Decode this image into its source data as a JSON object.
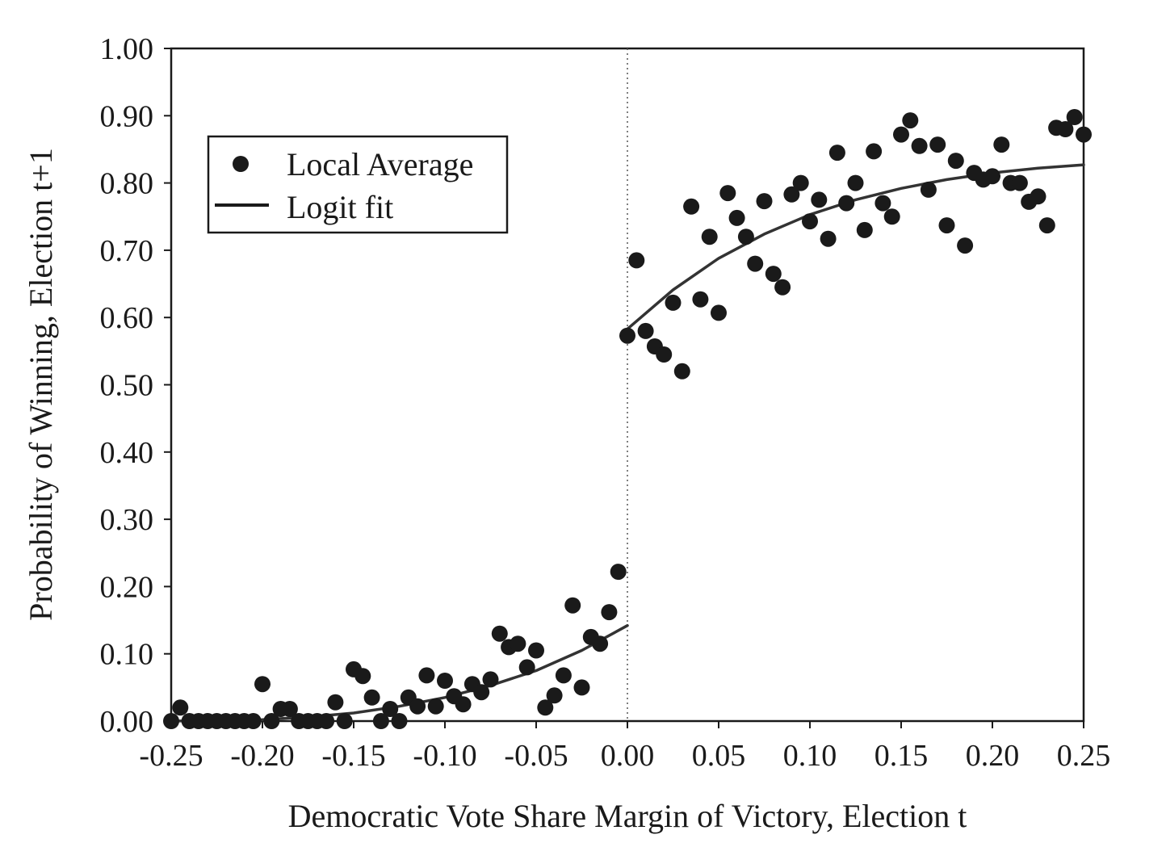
{
  "chart_data": {
    "type": "scatter",
    "xlabel": "Democratic Vote Share Margin of  Victory, Election t",
    "ylabel": "Probability of  Winning, Election t+1",
    "xlim": [
      -0.25,
      0.25
    ],
    "ylim": [
      0.0,
      1.0
    ],
    "x_ticks": [
      "-0.25",
      "-0.20",
      "-0.15",
      "-0.10",
      "-0.05",
      "0.00",
      "0.05",
      "0.10",
      "0.15",
      "0.20",
      "0.25"
    ],
    "y_ticks": [
      "0.00",
      "0.10",
      "0.20",
      "0.30",
      "0.40",
      "0.50",
      "0.60",
      "0.70",
      "0.80",
      "0.90",
      "1.00"
    ],
    "grid": false,
    "cutoff_line_x": 0.0,
    "legend": {
      "placement": "top-left",
      "entries": [
        "Local Average",
        "Logit fit"
      ]
    },
    "colors": {
      "points": "#1a1a1a",
      "fit": "#333333",
      "axis": "#1a1a1a"
    },
    "series": [
      {
        "name": "Local Average",
        "kind": "points",
        "points": [
          [
            -0.25,
            0.0
          ],
          [
            -0.245,
            0.02
          ],
          [
            -0.24,
            0.0
          ],
          [
            -0.235,
            0.0
          ],
          [
            -0.23,
            0.0
          ],
          [
            -0.225,
            0.0
          ],
          [
            -0.22,
            0.0
          ],
          [
            -0.215,
            0.0
          ],
          [
            -0.21,
            0.0
          ],
          [
            -0.205,
            0.0
          ],
          [
            -0.2,
            0.055
          ],
          [
            -0.195,
            0.0
          ],
          [
            -0.19,
            0.018
          ],
          [
            -0.185,
            0.018
          ],
          [
            -0.18,
            0.0
          ],
          [
            -0.175,
            0.0
          ],
          [
            -0.17,
            0.0
          ],
          [
            -0.165,
            0.0
          ],
          [
            -0.16,
            0.028
          ],
          [
            -0.155,
            0.0
          ],
          [
            -0.15,
            0.077
          ],
          [
            -0.145,
            0.067
          ],
          [
            -0.14,
            0.035
          ],
          [
            -0.135,
            0.0
          ],
          [
            -0.13,
            0.018
          ],
          [
            -0.125,
            0.0
          ],
          [
            -0.12,
            0.035
          ],
          [
            -0.115,
            0.022
          ],
          [
            -0.11,
            0.068
          ],
          [
            -0.105,
            0.022
          ],
          [
            -0.1,
            0.06
          ],
          [
            -0.095,
            0.037
          ],
          [
            -0.09,
            0.025
          ],
          [
            -0.085,
            0.055
          ],
          [
            -0.08,
            0.043
          ],
          [
            -0.075,
            0.062
          ],
          [
            -0.07,
            0.13
          ],
          [
            -0.065,
            0.11
          ],
          [
            -0.06,
            0.115
          ],
          [
            -0.055,
            0.08
          ],
          [
            -0.05,
            0.105
          ],
          [
            -0.045,
            0.02
          ],
          [
            -0.04,
            0.038
          ],
          [
            -0.035,
            0.068
          ],
          [
            -0.03,
            0.172
          ],
          [
            -0.025,
            0.05
          ],
          [
            -0.02,
            0.125
          ],
          [
            -0.015,
            0.115
          ],
          [
            -0.01,
            0.162
          ],
          [
            -0.005,
            0.222
          ],
          [
            0.0,
            0.573
          ],
          [
            0.005,
            0.685
          ],
          [
            0.01,
            0.58
          ],
          [
            0.015,
            0.557
          ],
          [
            0.02,
            0.545
          ],
          [
            0.025,
            0.622
          ],
          [
            0.03,
            0.52
          ],
          [
            0.035,
            0.765
          ],
          [
            0.04,
            0.627
          ],
          [
            0.045,
            0.72
          ],
          [
            0.05,
            0.607
          ],
          [
            0.055,
            0.785
          ],
          [
            0.06,
            0.748
          ],
          [
            0.065,
            0.72
          ],
          [
            0.07,
            0.68
          ],
          [
            0.075,
            0.773
          ],
          [
            0.08,
            0.665
          ],
          [
            0.085,
            0.645
          ],
          [
            0.09,
            0.783
          ],
          [
            0.095,
            0.8
          ],
          [
            0.1,
            0.743
          ],
          [
            0.105,
            0.775
          ],
          [
            0.11,
            0.717
          ],
          [
            0.115,
            0.845
          ],
          [
            0.12,
            0.77
          ],
          [
            0.125,
            0.8
          ],
          [
            0.13,
            0.73
          ],
          [
            0.135,
            0.847
          ],
          [
            0.14,
            0.77
          ],
          [
            0.145,
            0.75
          ],
          [
            0.15,
            0.872
          ],
          [
            0.155,
            0.893
          ],
          [
            0.16,
            0.855
          ],
          [
            0.165,
            0.79
          ],
          [
            0.17,
            0.857
          ],
          [
            0.175,
            0.737
          ],
          [
            0.18,
            0.833
          ],
          [
            0.185,
            0.707
          ],
          [
            0.19,
            0.815
          ],
          [
            0.195,
            0.805
          ],
          [
            0.2,
            0.81
          ],
          [
            0.205,
            0.857
          ],
          [
            0.21,
            0.8
          ],
          [
            0.215,
            0.8
          ],
          [
            0.22,
            0.772
          ],
          [
            0.225,
            0.78
          ],
          [
            0.23,
            0.737
          ],
          [
            0.235,
            0.882
          ],
          [
            0.24,
            0.88
          ],
          [
            0.245,
            0.898
          ],
          [
            0.25,
            0.872
          ]
        ]
      },
      {
        "name": "Logit fit",
        "kind": "line",
        "segments": [
          [
            [
              -0.25,
              0.0
            ],
            [
              -0.2,
              0.002
            ],
            [
              -0.175,
              0.006
            ],
            [
              -0.15,
              0.012
            ],
            [
              -0.125,
              0.022
            ],
            [
              -0.1,
              0.035
            ],
            [
              -0.075,
              0.053
            ],
            [
              -0.05,
              0.075
            ],
            [
              -0.025,
              0.105
            ],
            [
              0.0,
              0.142
            ]
          ],
          [
            [
              0.0,
              0.583
            ],
            [
              0.025,
              0.641
            ],
            [
              0.05,
              0.688
            ],
            [
              0.075,
              0.724
            ],
            [
              0.1,
              0.753
            ],
            [
              0.125,
              0.775
            ],
            [
              0.15,
              0.792
            ],
            [
              0.175,
              0.805
            ],
            [
              0.2,
              0.815
            ],
            [
              0.225,
              0.822
            ],
            [
              0.25,
              0.827
            ]
          ]
        ]
      }
    ]
  }
}
